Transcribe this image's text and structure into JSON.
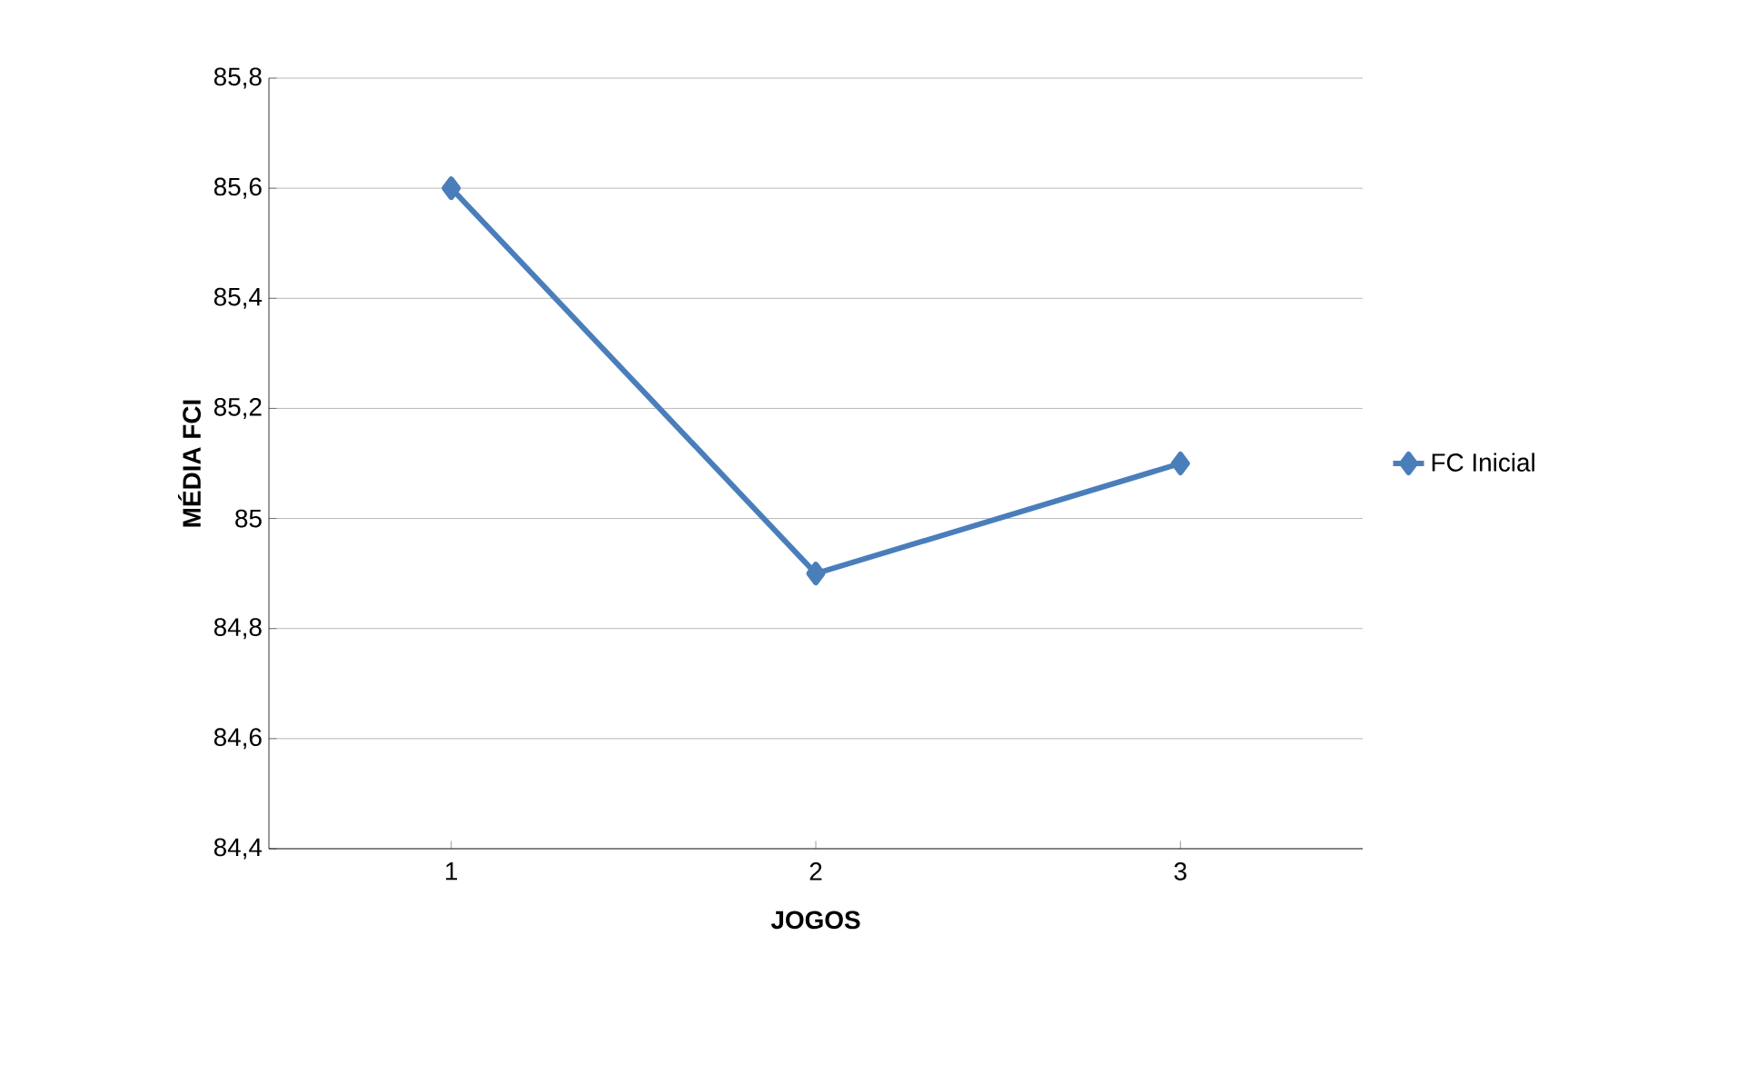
{
  "chart_data": {
    "type": "line",
    "xlabel": "JOGOS",
    "ylabel": "MÉDIA FCI",
    "categories": [
      "1",
      "2",
      "3"
    ],
    "series": [
      {
        "name": "FC Inicial",
        "color": "#4a7ebb",
        "values": [
          85.6,
          84.9,
          85.1
        ]
      }
    ],
    "ylim": [
      84.4,
      85.8
    ],
    "yticks": [
      {
        "value": 84.4,
        "label": "84,4"
      },
      {
        "value": 84.6,
        "label": "84,6"
      },
      {
        "value": 84.8,
        "label": "84,8"
      },
      85,
      {
        "value": 85.2,
        "label": "85,2"
      },
      {
        "value": 85.4,
        "label": "85,4"
      },
      {
        "value": 85.6,
        "label": "85,6"
      },
      {
        "value": 85.8,
        "label": "85,8"
      }
    ],
    "grid": "y",
    "legend": "right",
    "marker": "diamond",
    "line_style": "solid"
  }
}
